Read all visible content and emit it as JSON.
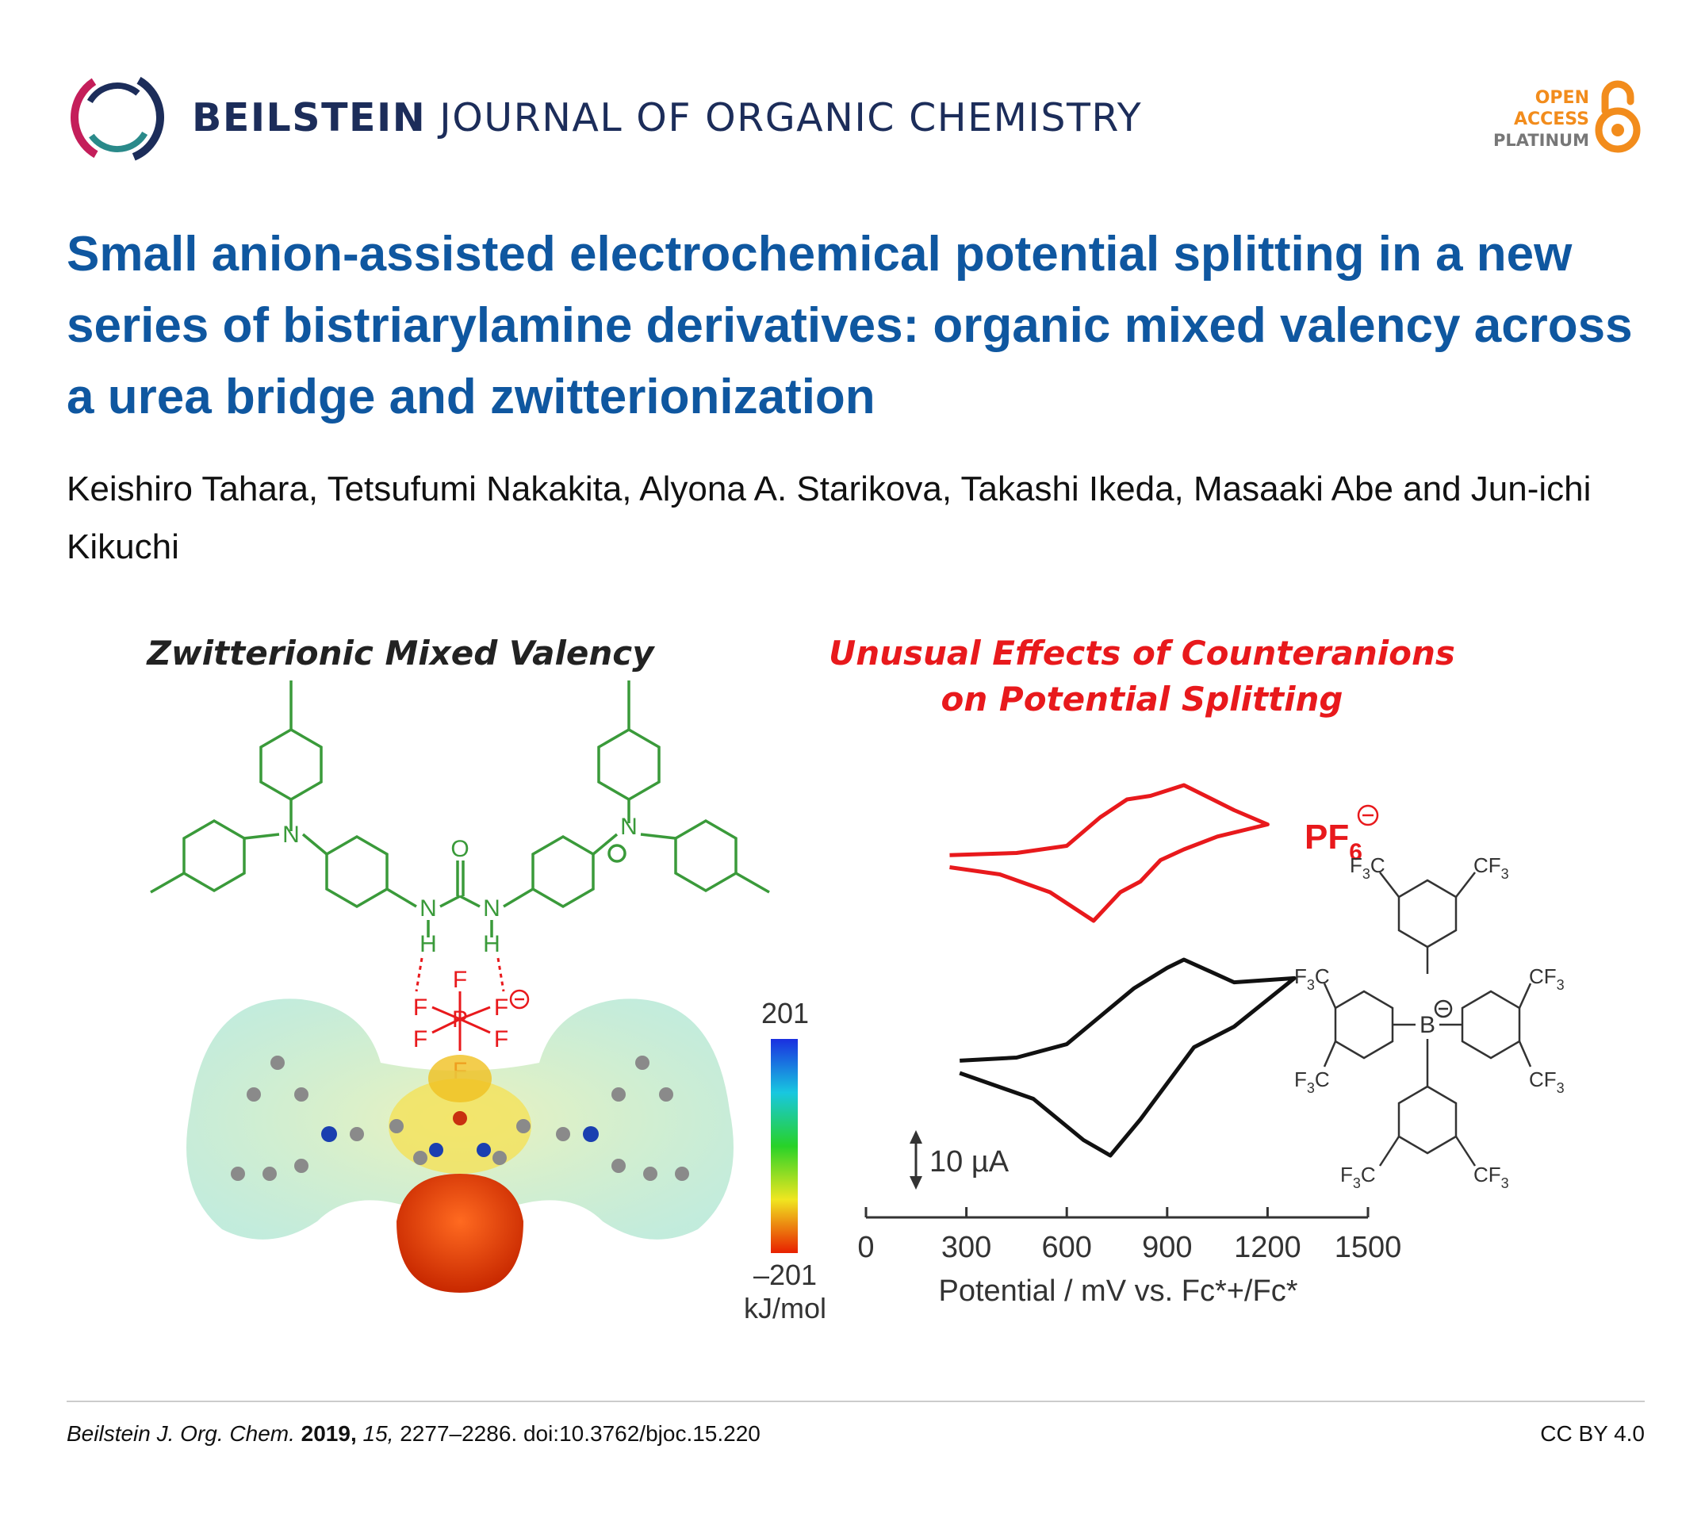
{
  "header": {
    "journal_bold": "BEILSTEIN",
    "journal_rest": "JOURNAL OF ORGANIC CHEMISTRY",
    "oa_line1": "OPEN",
    "oa_line2": "ACCESS",
    "oa_line3": "PLATINUM",
    "logo_icon": "beilstein-ring-logo-icon",
    "lock_icon": "open-access-lock-icon",
    "colors": {
      "title_blue": "#0f57a0",
      "journal_navy": "#1c2d5a",
      "oa_orange": "#f28c1c"
    }
  },
  "article": {
    "title": "Small anion-assisted electrochemical potential splitting in a new series of bistriarylamine derivatives: organic mixed valency across a urea bridge and zwitterionization",
    "authors": "Keishiro Tahara, Tetsufumi Nakakita, Alyona A. Starikova, Takashi Ikeda, Masaaki Abe and Jun-ichi Kikuchi"
  },
  "graphic": {
    "left_heading": "Zwitterionic Mixed Valency",
    "right_heading_line1": "Unusual Effects of Counteranions",
    "right_heading_line2": "on Potential Splitting",
    "atoms": {
      "nitrogen": "N",
      "oxygen": "O",
      "hydrogen": "H",
      "phosphorus": "P",
      "fluorine": "F",
      "boron": "B"
    },
    "colorbar": {
      "max": "201",
      "min": "–201",
      "unit": "kJ/mol"
    },
    "pf6_label": "PF",
    "pf6_sub": "6",
    "borate_cf3": "CF",
    "borate_f3c": "F",
    "borate_sub3": "3",
    "borate_c": "C",
    "scale_bar": "10 µA",
    "x_ticks": [
      "0",
      "300",
      "600",
      "900",
      "1200",
      "1500"
    ],
    "x_label": "Potential / mV  vs. Fc*+/Fc*",
    "chart_data": {
      "type": "line",
      "xlabel": "Potential / mV  vs. Fc*+/Fc*",
      "xlim": [
        0,
        1500
      ],
      "series": [
        {
          "name": "PF6",
          "color": "#e8191c",
          "forward": [
            [
              250,
              0.02
            ],
            [
              450,
              0.05
            ],
            [
              600,
              0.15
            ],
            [
              700,
              0.55
            ],
            [
              780,
              0.8
            ],
            [
              850,
              0.85
            ],
            [
              950,
              1.0
            ],
            [
              1100,
              0.65
            ],
            [
              1200,
              0.45
            ]
          ],
          "reverse": [
            [
              1200,
              0.45
            ],
            [
              1050,
              0.28
            ],
            [
              950,
              0.1
            ],
            [
              880,
              -0.05
            ],
            [
              820,
              -0.35
            ],
            [
              760,
              -0.5
            ],
            [
              680,
              -0.9
            ],
            [
              550,
              -0.5
            ],
            [
              400,
              -0.25
            ],
            [
              250,
              -0.15
            ]
          ]
        },
        {
          "name": "BArF",
          "color": "#111111",
          "forward": [
            [
              280,
              0.02
            ],
            [
              450,
              0.05
            ],
            [
              600,
              0.18
            ],
            [
              700,
              0.45
            ],
            [
              800,
              0.72
            ],
            [
              900,
              0.92
            ],
            [
              950,
              1.0
            ],
            [
              1100,
              0.78
            ],
            [
              1280,
              0.82
            ]
          ],
          "reverse": [
            [
              1280,
              0.82
            ],
            [
              1100,
              0.35
            ],
            [
              980,
              0.15
            ],
            [
              900,
              -0.2
            ],
            [
              820,
              -0.55
            ],
            [
              730,
              -0.9
            ],
            [
              650,
              -0.75
            ],
            [
              500,
              -0.35
            ],
            [
              280,
              -0.1
            ]
          ]
        }
      ]
    }
  },
  "footer": {
    "journal_abbrev": "Beilstein J. Org. Chem.",
    "year": "2019,",
    "volume": "15,",
    "pages_doi": "2277–2286. doi:10.3762/bjoc.15.220",
    "license": "CC BY 4.0"
  }
}
